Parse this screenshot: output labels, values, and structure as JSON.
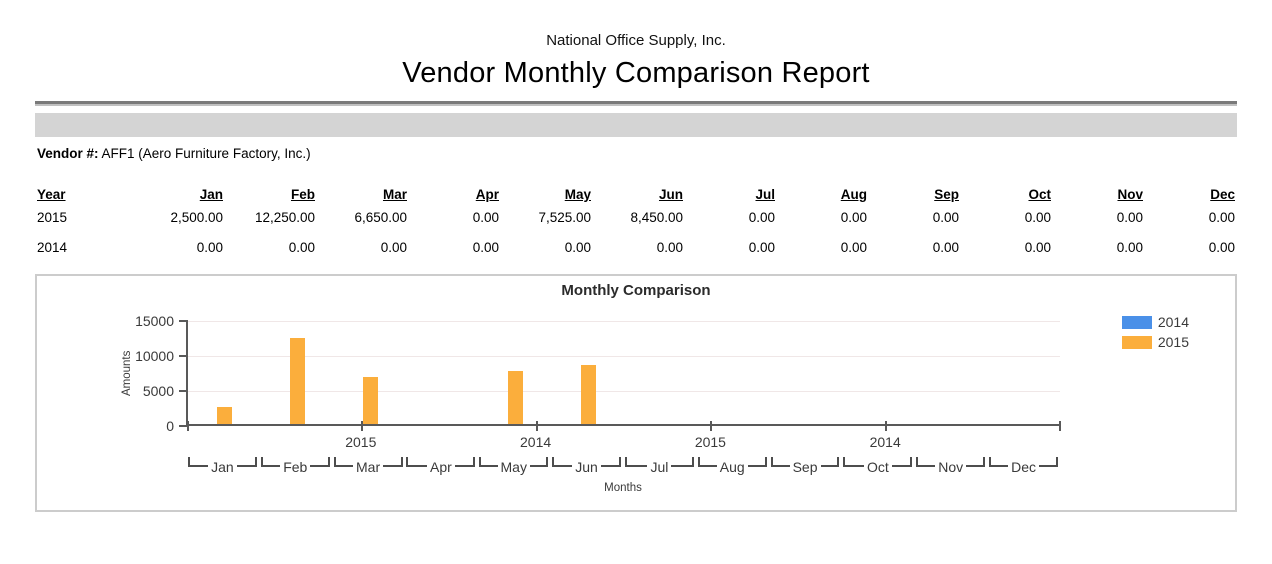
{
  "header": {
    "company": "National Office Supply, Inc.",
    "title": "Vendor Monthly Comparison Report"
  },
  "vendor": {
    "label": "Vendor #:",
    "value": "AFF1 (Aero Furniture Factory, Inc.)"
  },
  "table": {
    "columns": [
      "Year",
      "Jan",
      "Feb",
      "Mar",
      "Apr",
      "May",
      "Jun",
      "Jul",
      "Aug",
      "Sep",
      "Oct",
      "Nov",
      "Dec"
    ],
    "rows": [
      {
        "year": "2015",
        "values": [
          "2,500.00",
          "12,250.00",
          "6,650.00",
          "0.00",
          "7,525.00",
          "8,450.00",
          "0.00",
          "0.00",
          "0.00",
          "0.00",
          "0.00",
          "0.00"
        ]
      },
      {
        "year": "2014",
        "values": [
          "0.00",
          "0.00",
          "0.00",
          "0.00",
          "0.00",
          "0.00",
          "0.00",
          "0.00",
          "0.00",
          "0.00",
          "0.00",
          "0.00"
        ]
      }
    ]
  },
  "chart_data": {
    "type": "bar",
    "title": "Monthly Comparison",
    "xlabel": "Months",
    "ylabel": "Amounts",
    "categories": [
      "Jan",
      "Feb",
      "Mar",
      "Apr",
      "May",
      "Jun",
      "Jul",
      "Aug",
      "Sep",
      "Oct",
      "Nov",
      "Dec"
    ],
    "series": [
      {
        "name": "2014",
        "color": "#4a90e8",
        "values": [
          0,
          0,
          0,
          0,
          0,
          0,
          0,
          0,
          0,
          0,
          0,
          0
        ]
      },
      {
        "name": "2015",
        "color": "#fbae3c",
        "values": [
          2500,
          12250,
          6650,
          0,
          7525,
          8450,
          0,
          0,
          0,
          0,
          0,
          0
        ]
      }
    ],
    "ylim": [
      0,
      15000
    ],
    "yticks": [
      0,
      5000,
      10000,
      15000
    ],
    "inner_axis_year_labels": [
      "2015",
      "2014",
      "2015",
      "2014"
    ],
    "legend_position": "top-right",
    "grid": "horizontal"
  },
  "colors": {
    "band_gray": "#d4d4d4",
    "rule_dark": "#7a7a7a",
    "rule_light": "#c0c0c0",
    "axis": "#595959",
    "gridline": "#f0e7e7",
    "chart_border": "#cccccc",
    "series_2014": "#4a90e8",
    "series_2015": "#fbae3c"
  }
}
